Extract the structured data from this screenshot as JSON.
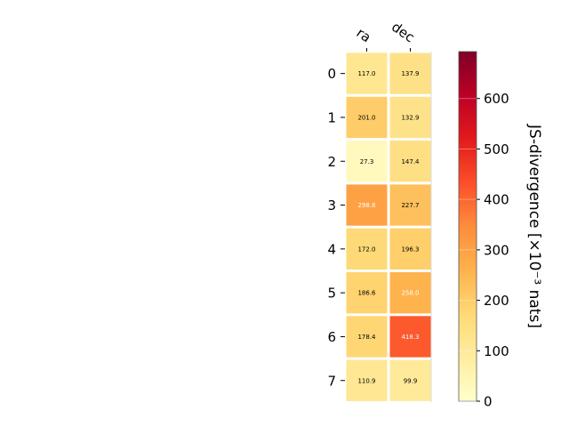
{
  "chart_data": {
    "type": "heatmap",
    "columns": [
      "ra",
      "dec"
    ],
    "rows": [
      "0",
      "1",
      "2",
      "3",
      "4",
      "5",
      "6",
      "7"
    ],
    "values": [
      [
        117.0,
        137.9
      ],
      [
        201.0,
        132.9
      ],
      [
        27.3,
        147.4
      ],
      [
        298.8,
        227.7
      ],
      [
        172.0,
        196.3
      ],
      [
        186.6,
        258.0
      ],
      [
        178.4,
        418.3
      ],
      [
        110.9,
        99.9
      ]
    ],
    "value_labels": [
      [
        "117.0",
        "137.9"
      ],
      [
        "201.0",
        "132.9"
      ],
      [
        "27.3",
        "147.4"
      ],
      [
        "298.8",
        "227.7"
      ],
      [
        "172.0",
        "196.3"
      ],
      [
        "186.6",
        "258.0"
      ],
      [
        "178.4",
        "418.3"
      ],
      [
        "110.9",
        "99.9"
      ]
    ],
    "colorbar": {
      "label": "JS-divergence [×10⁻³ nats]",
      "range": [
        0,
        693
      ],
      "ticks": [
        "0",
        "100",
        "200",
        "300",
        "400",
        "500",
        "600"
      ],
      "colormap": "YlOrRd"
    },
    "grid": false
  }
}
